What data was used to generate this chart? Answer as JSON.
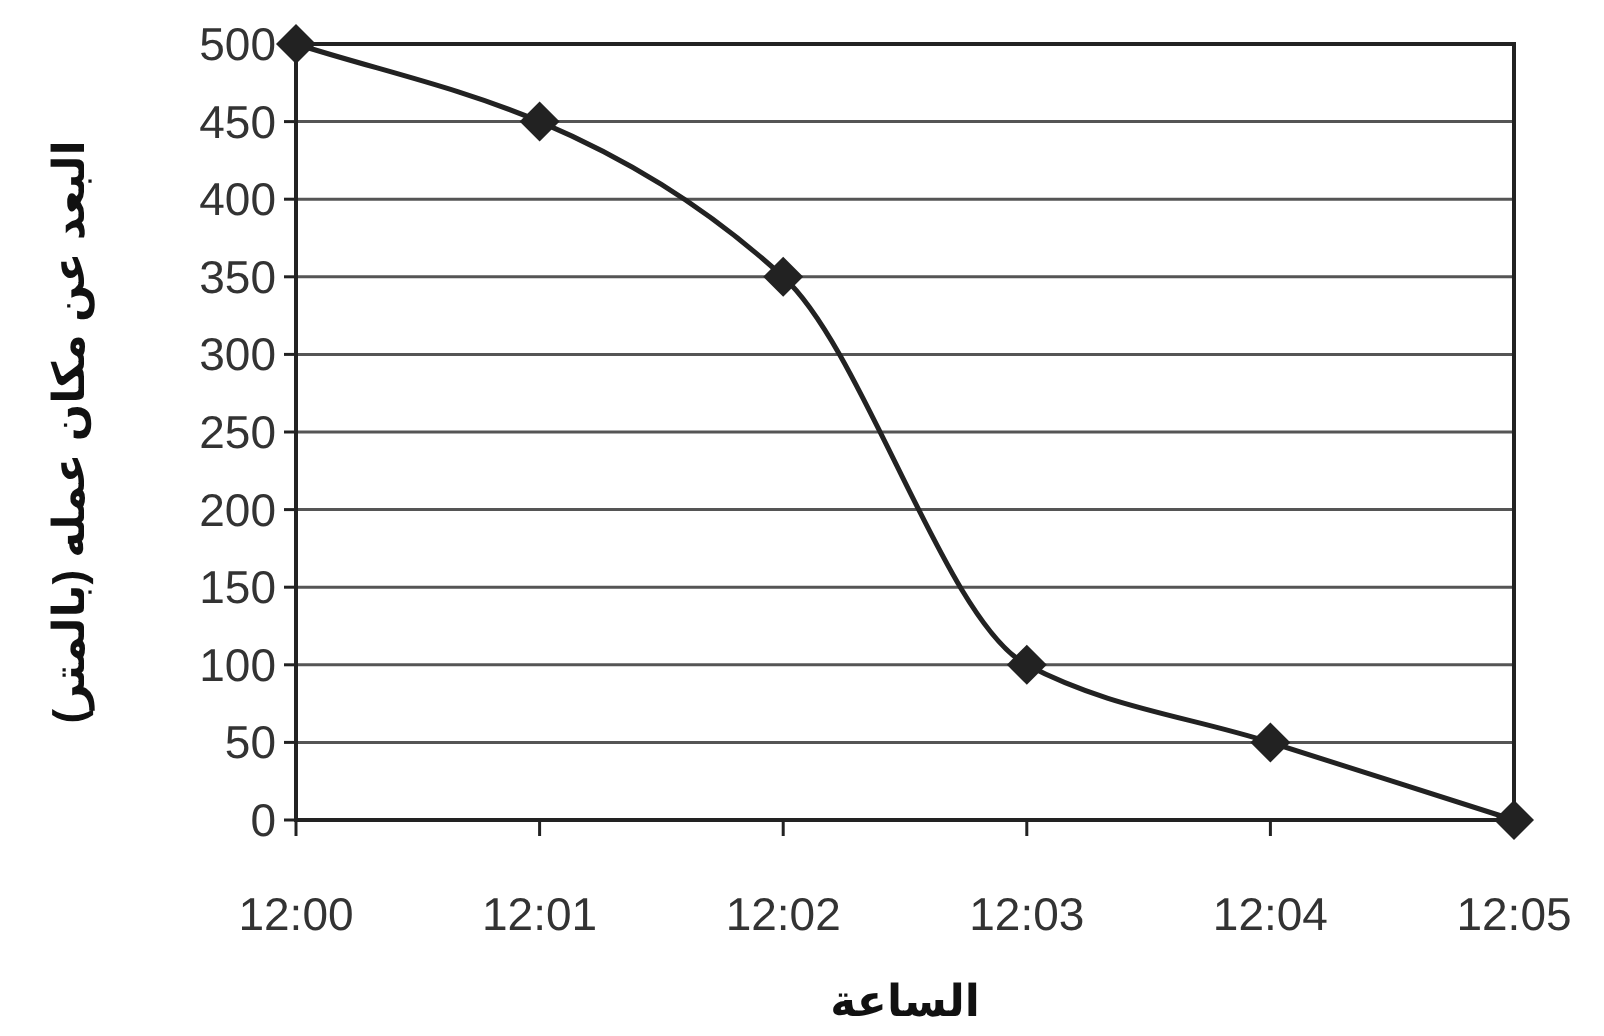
{
  "chart_data": {
    "type": "line",
    "xlabel": "الساعة",
    "ylabel": "البعد عن مكان عمله (بالمتر)",
    "categories": [
      "12:00",
      "12:01",
      "12:02",
      "12:03",
      "12:04",
      "12:05"
    ],
    "series": [
      {
        "color": "#222222",
        "values": [
          500,
          450,
          350,
          100,
          50,
          0
        ],
        "marker": "diamond"
      }
    ],
    "ylim": [
      0,
      500
    ],
    "yticks": [
      0,
      50,
      100,
      150,
      200,
      250,
      300,
      350,
      400,
      450,
      500
    ],
    "grid": "y"
  }
}
